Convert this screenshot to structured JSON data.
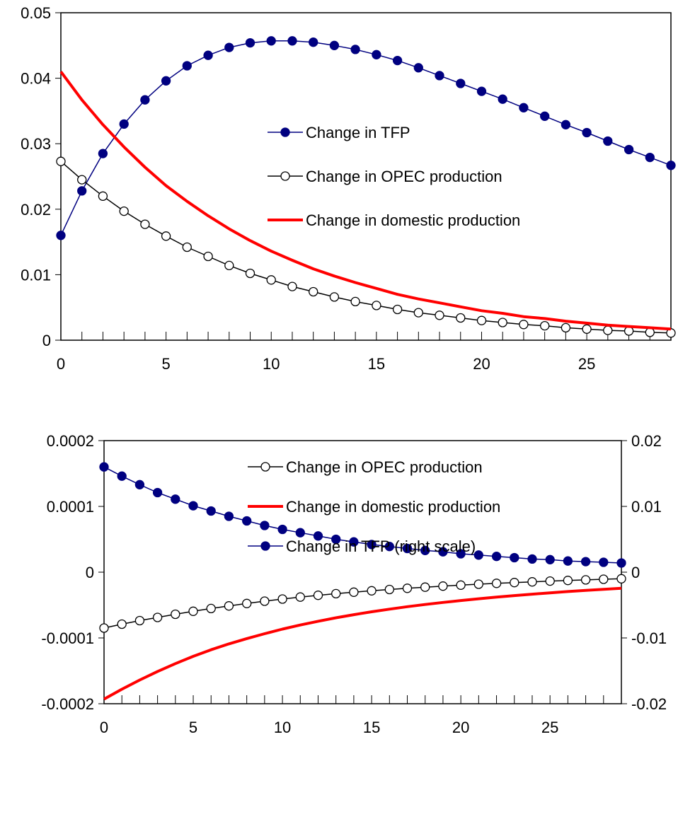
{
  "chart_data": [
    {
      "type": "line",
      "title": "",
      "xlabel": "",
      "ylabel": "",
      "xlim": [
        0,
        29
      ],
      "ylim": [
        0,
        0.05
      ],
      "x_ticks": [
        0,
        5,
        10,
        15,
        20,
        25
      ],
      "y_ticks": [
        0,
        0.01,
        0.02,
        0.03,
        0.04,
        0.05
      ],
      "x_tick_labels": [
        "0",
        "5",
        "10",
        "15",
        "20",
        "25"
      ],
      "y_tick_labels": [
        "0",
        "0.01",
        "0.02",
        "0.03",
        "0.04",
        "0.05"
      ],
      "grid": false,
      "legend_position": "center-right",
      "x": [
        0,
        1,
        2,
        3,
        4,
        5,
        6,
        7,
        8,
        9,
        10,
        11,
        12,
        13,
        14,
        15,
        16,
        17,
        18,
        19,
        20,
        21,
        22,
        23,
        24,
        25,
        26,
        27,
        28,
        29
      ],
      "series": [
        {
          "name": "Change in TFP",
          "marker": "filled-circle",
          "color": "#000080",
          "values": [
            0.016,
            0.0228,
            0.0285,
            0.033,
            0.0367,
            0.0396,
            0.0419,
            0.0435,
            0.0447,
            0.0454,
            0.0457,
            0.0457,
            0.0455,
            0.045,
            0.0444,
            0.0436,
            0.0427,
            0.0416,
            0.0404,
            0.0392,
            0.038,
            0.0368,
            0.0355,
            0.0342,
            0.0329,
            0.0317,
            0.0304,
            0.0291,
            0.0279,
            0.0267
          ]
        },
        {
          "name": "Change in OPEC production",
          "marker": "open-circle",
          "color": "#000000",
          "values": [
            0.0273,
            0.0245,
            0.022,
            0.0197,
            0.0177,
            0.0159,
            0.0142,
            0.0128,
            0.0114,
            0.0102,
            0.0092,
            0.0082,
            0.0074,
            0.0066,
            0.0059,
            0.0053,
            0.0047,
            0.0042,
            0.0038,
            0.0034,
            0.003,
            0.0027,
            0.0024,
            0.0022,
            0.0019,
            0.0017,
            0.0015,
            0.0014,
            0.0012,
            0.0011
          ]
        },
        {
          "name": "Change in domestic production",
          "marker": "none",
          "color": "#ff0000",
          "values": [
            0.041,
            0.0367,
            0.0329,
            0.0295,
            0.0264,
            0.0236,
            0.0212,
            0.019,
            0.017,
            0.0152,
            0.0136,
            0.0122,
            0.0109,
            0.0098,
            0.0088,
            0.0079,
            0.007,
            0.0063,
            0.0057,
            0.0051,
            0.0045,
            0.0041,
            0.0036,
            0.0033,
            0.0029,
            0.0026,
            0.0023,
            0.0021,
            0.0019,
            0.0017
          ]
        }
      ]
    },
    {
      "type": "line",
      "title": "",
      "xlabel": "",
      "ylabel": "",
      "xlim": [
        0,
        29
      ],
      "ylim": [
        -0.0002,
        0.0002
      ],
      "y2lim": [
        -0.02,
        0.02
      ],
      "x_ticks": [
        0,
        5,
        10,
        15,
        20,
        25
      ],
      "y_ticks": [
        -0.0002,
        -0.0001,
        0,
        0.0001,
        0.0002
      ],
      "y2_ticks": [
        -0.02,
        -0.01,
        0,
        0.01,
        0.02
      ],
      "x_tick_labels": [
        "0",
        "5",
        "10",
        "15",
        "20",
        "25"
      ],
      "y_tick_labels": [
        "-0.0002",
        "-0.0001",
        "0",
        "0.0001",
        "0.0002"
      ],
      "y2_tick_labels": [
        "-0.02",
        "-0.01",
        "0",
        "0.01",
        "0.02"
      ],
      "grid": false,
      "legend_position": "top-right",
      "x": [
        0,
        1,
        2,
        3,
        4,
        5,
        6,
        7,
        8,
        9,
        10,
        11,
        12,
        13,
        14,
        15,
        16,
        17,
        18,
        19,
        20,
        21,
        22,
        23,
        24,
        25,
        26,
        27,
        28,
        29
      ],
      "series": [
        {
          "name": "Change in OPEC production",
          "marker": "open-circle",
          "color": "#000000",
          "axis": "left",
          "values": [
            -8.5e-05,
            -7.9e-05,
            -7.37e-05,
            -6.88e-05,
            -6.4e-05,
            -5.95e-05,
            -5.53e-05,
            -5.13e-05,
            -4.76e-05,
            -4.41e-05,
            -4.09e-05,
            -3.79e-05,
            -3.52e-05,
            -3.27e-05,
            -3.04e-05,
            -2.83e-05,
            -2.63e-05,
            -2.45e-05,
            -2.28e-05,
            -2.12e-05,
            -1.97e-05,
            -1.83e-05,
            -1.7e-05,
            -1.58e-05,
            -1.47e-05,
            -1.36e-05,
            -1.26e-05,
            -1.17e-05,
            -1.08e-05,
            -1e-05
          ]
        },
        {
          "name": "Change in domestic production",
          "marker": "none",
          "color": "#ff0000",
          "axis": "left",
          "values": [
            -0.000193,
            -0.000178,
            -0.000164,
            -0.000151,
            -0.000139,
            -0.000128,
            -0.000118,
            -0.000109,
            -0.000101,
            -9.35e-05,
            -8.66e-05,
            -8.03e-05,
            -7.46e-05,
            -6.94e-05,
            -6.46e-05,
            -6.02e-05,
            -5.62e-05,
            -5.25e-05,
            -4.91e-05,
            -4.6e-05,
            -4.31e-05,
            -4.04e-05,
            -3.79e-05,
            -3.56e-05,
            -3.34e-05,
            -3.14e-05,
            -2.95e-05,
            -2.77e-05,
            -2.6e-05,
            -2.45e-05
          ]
        },
        {
          "name": "Change in TFP (right scale)",
          "marker": "filled-circle",
          "color": "#000080",
          "axis": "right",
          "values": [
            0.016,
            0.0146,
            0.0133,
            0.0121,
            0.0111,
            0.0101,
            0.0093,
            0.0085,
            0.0078,
            0.0071,
            0.0065,
            0.006,
            0.0055,
            0.005,
            0.0046,
            0.0042,
            0.0039,
            0.0036,
            0.0033,
            0.0031,
            0.0028,
            0.0026,
            0.0024,
            0.0022,
            0.002,
            0.0019,
            0.0017,
            0.0016,
            0.0015,
            0.0014
          ]
        }
      ]
    }
  ]
}
